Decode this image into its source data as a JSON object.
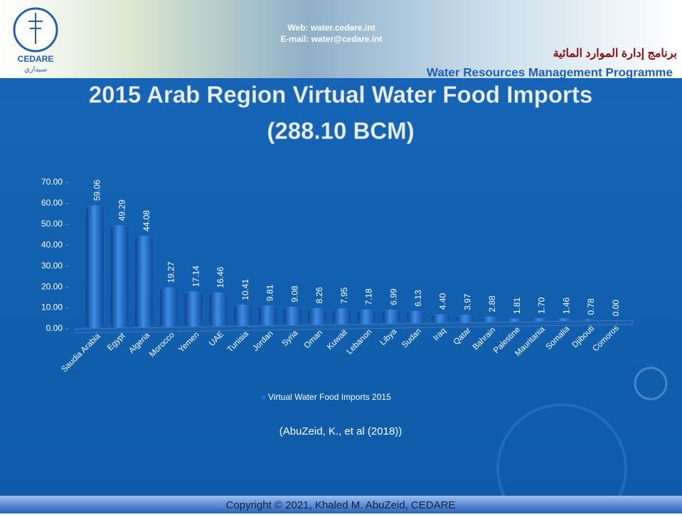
{
  "header": {
    "web": "Web: water.cedare.int",
    "email": "E-mail: water@cedare.int",
    "logo_text": "CEDARE",
    "logo_arabic": "سيداري",
    "programme_arabic": "برنامج إدارة الموارد المائية",
    "programme": "Water Resources Management Programme"
  },
  "title_line1": "2015 Arab Region Virtual Water Food Imports",
  "title_line2": "(288.10 BCM)",
  "chart_data": {
    "type": "bar",
    "categories": [
      "Saudia Arabia",
      "Egypt",
      "Algeria",
      "Morocco",
      "Yemen",
      "UAE",
      "Tunisia",
      "Jordan",
      "Syria",
      "Oman",
      "Kuwait",
      "Lebanon",
      "Libya",
      "Sudan",
      "Iraq",
      "Qatar",
      "Bahrain",
      "Palestine",
      "Mauritania",
      "Somalia",
      "Djibouti",
      "Comoros"
    ],
    "series": [
      {
        "name": "Virtual Water Food Imports 2015",
        "color": "#1f6fd0",
        "values": [
          59.06,
          49.29,
          44.08,
          19.27,
          17.14,
          16.46,
          10.41,
          9.81,
          9.08,
          8.26,
          7.95,
          7.18,
          6.99,
          6.13,
          4.4,
          3.97,
          2.88,
          1.81,
          1.7,
          1.46,
          0.78,
          0
        ],
        "value_labels": [
          "59.06",
          "49.29",
          "44.08",
          "19.27",
          "17.14",
          "16.46",
          "10.41",
          "9.81",
          "9.08",
          "8.26",
          "7.95",
          "7.18",
          "6.99",
          "6.13",
          "4.40",
          "3.97",
          "2.88",
          "1.81",
          "1.70",
          "1.46",
          "0.78",
          "0.00"
        ]
      }
    ],
    "ylim": [
      0,
      70
    ],
    "yticks": [
      {
        "value": 0,
        "label": "0.00"
      },
      {
        "value": 10,
        "label": "10.00"
      },
      {
        "value": 20,
        "label": "20.00"
      },
      {
        "value": 30,
        "label": "30.00"
      },
      {
        "value": 40,
        "label": "40.00"
      },
      {
        "value": 50,
        "label": "50.00"
      },
      {
        "value": 60,
        "label": "60.00"
      },
      {
        "value": 70,
        "label": "70.00"
      }
    ],
    "grid": false,
    "legend": "bottom"
  },
  "citation": "(AbuZeid, K., et al (2018))",
  "footer": "Copyright © 2021, Khaled M. AbuZeid, CEDARE"
}
